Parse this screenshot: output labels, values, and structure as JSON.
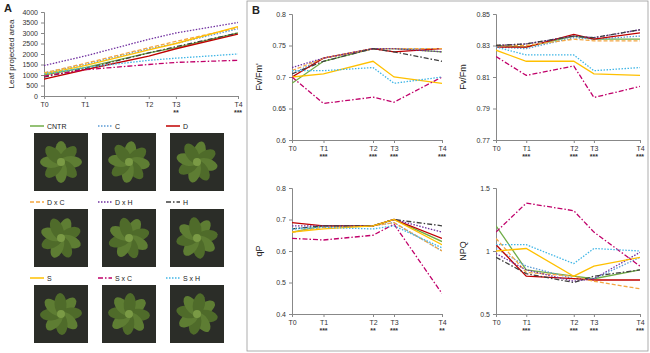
{
  "chart_data": [
    {
      "type": "line",
      "title": "A",
      "ylabel": "Leaf projected area",
      "categories": [
        "T0",
        "T1",
        "T2",
        "T3",
        "T4"
      ],
      "annotations": [
        null,
        null,
        null,
        "**",
        "***"
      ],
      "ylim": [
        0,
        4000
      ],
      "yticks": [
        0,
        500,
        1000,
        1500,
        2000,
        2500,
        3000,
        3500,
        4000
      ],
      "grid": false,
      "legend": "bottom",
      "series": [
        {
          "name": "CNTR",
          "color": "#70ad47",
          "line_style": "solid",
          "values": [
            1000,
            1350,
            2050,
            2300,
            3000
          ]
        },
        {
          "name": "C",
          "color": "#5b9bd5",
          "line_style": "dotted",
          "values": [
            1100,
            1500,
            2250,
            2500,
            3200
          ]
        },
        {
          "name": "D",
          "color": "#c00000",
          "line_style": "solid",
          "values": [
            800,
            1250,
            1900,
            2250,
            2950
          ]
        },
        {
          "name": "D x C",
          "color": "#f4a742",
          "line_style": "dashed",
          "values": [
            1100,
            1550,
            2300,
            2600,
            3250
          ]
        },
        {
          "name": "D x H",
          "color": "#7030a0",
          "line_style": "dotted",
          "values": [
            1450,
            1900,
            2700,
            3000,
            3500
          ]
        },
        {
          "name": "H",
          "color": "#404040",
          "line_style": "dashdot",
          "values": [
            900,
            1300,
            2050,
            2350,
            3000
          ]
        },
        {
          "name": "S",
          "color": "#ffc000",
          "line_style": "solid",
          "values": [
            1050,
            1450,
            2200,
            2500,
            3300
          ]
        },
        {
          "name": "S x C",
          "color": "#c0006a",
          "line_style": "dashdot",
          "values": [
            950,
            1250,
            1500,
            1600,
            1700
          ]
        },
        {
          "name": "S x H",
          "color": "#41b6e6",
          "line_style": "dotted",
          "values": [
            1050,
            1350,
            1700,
            1800,
            2000
          ]
        }
      ]
    },
    {
      "type": "line",
      "title": "B",
      "ylabel": "Fv/Fm'",
      "categories": [
        "T0",
        "T1",
        "T2",
        "T3",
        "T4"
      ],
      "annotations": [
        null,
        "***",
        "***",
        "***",
        "***"
      ],
      "ylim": [
        0.6,
        0.8
      ],
      "yticks": [
        0.6,
        0.65,
        0.7,
        0.75,
        0.8
      ],
      "grid": false,
      "series": [
        {
          "name": "CNTR",
          "color": "#70ad47",
          "line_style": "solid",
          "values": [
            0.69,
            0.725,
            0.745,
            0.745,
            0.74
          ]
        },
        {
          "name": "C",
          "color": "#5b9bd5",
          "line_style": "dotted",
          "values": [
            0.705,
            0.73,
            0.745,
            0.745,
            0.745
          ]
        },
        {
          "name": "D",
          "color": "#c00000",
          "line_style": "solid",
          "values": [
            0.7,
            0.73,
            0.745,
            0.74,
            0.745
          ]
        },
        {
          "name": "D x C",
          "color": "#f4a742",
          "line_style": "dashed",
          "values": [
            0.71,
            0.73,
            0.745,
            0.745,
            0.745
          ]
        },
        {
          "name": "D x H",
          "color": "#7030a0",
          "line_style": "dotted",
          "values": [
            0.715,
            0.73,
            0.745,
            0.745,
            0.74
          ]
        },
        {
          "name": "H",
          "color": "#404040",
          "line_style": "dashdot",
          "values": [
            0.705,
            0.725,
            0.745,
            0.74,
            0.725
          ]
        },
        {
          "name": "S",
          "color": "#ffc000",
          "line_style": "solid",
          "values": [
            0.7,
            0.705,
            0.725,
            0.7,
            0.69
          ]
        },
        {
          "name": "S x C",
          "color": "#c0006a",
          "line_style": "dashdot",
          "values": [
            0.7,
            0.658,
            0.668,
            0.66,
            0.7
          ]
        },
        {
          "name": "S x H",
          "color": "#41b6e6",
          "line_style": "dotted",
          "values": [
            0.71,
            0.71,
            0.715,
            0.69,
            0.7
          ]
        }
      ]
    },
    {
      "type": "line",
      "ylabel": "Fv/Fm",
      "categories": [
        "T0",
        "T1",
        "T2",
        "T3",
        "T4"
      ],
      "annotations": [
        null,
        "***",
        "***",
        "***",
        "***"
      ],
      "ylim": [
        0.77,
        0.85
      ],
      "yticks": [
        0.77,
        0.79,
        0.81,
        0.83,
        0.85
      ],
      "grid": false,
      "series": [
        {
          "name": "CNTR",
          "color": "#70ad47",
          "line_style": "solid",
          "values": [
            0.83,
            0.829,
            0.836,
            0.834,
            0.834
          ]
        },
        {
          "name": "C",
          "color": "#5b9bd5",
          "line_style": "dotted",
          "values": [
            0.829,
            0.828,
            0.835,
            0.834,
            0.836
          ]
        },
        {
          "name": "D",
          "color": "#c00000",
          "line_style": "solid",
          "values": [
            0.829,
            0.829,
            0.837,
            0.834,
            0.838
          ]
        },
        {
          "name": "D x C",
          "color": "#f4a742",
          "line_style": "dashed",
          "values": [
            0.83,
            0.83,
            0.834,
            0.833,
            0.833
          ]
        },
        {
          "name": "D x H",
          "color": "#7030a0",
          "line_style": "dotted",
          "values": [
            0.83,
            0.831,
            0.836,
            0.835,
            0.84
          ]
        },
        {
          "name": "H",
          "color": "#404040",
          "line_style": "dashdot",
          "values": [
            0.83,
            0.831,
            0.836,
            0.835,
            0.84
          ]
        },
        {
          "name": "S",
          "color": "#ffc000",
          "line_style": "solid",
          "values": [
            0.827,
            0.82,
            0.82,
            0.812,
            0.811
          ]
        },
        {
          "name": "S x C",
          "color": "#c0006a",
          "line_style": "dashdot",
          "values": [
            0.823,
            0.811,
            0.817,
            0.797,
            0.804
          ]
        },
        {
          "name": "S x H",
          "color": "#41b6e6",
          "line_style": "dotted",
          "values": [
            0.829,
            0.824,
            0.824,
            0.814,
            0.816
          ]
        }
      ]
    },
    {
      "type": "line",
      "ylabel": "qP",
      "categories": [
        "T0",
        "T1",
        "T2",
        "T3",
        "T4"
      ],
      "annotations": [
        null,
        "***",
        "**",
        "***",
        "**"
      ],
      "ylim": [
        0.4,
        0.8
      ],
      "yticks": [
        0.4,
        0.5,
        0.6,
        0.7,
        0.8
      ],
      "grid": false,
      "series": [
        {
          "name": "CNTR",
          "color": "#70ad47",
          "line_style": "solid",
          "values": [
            0.66,
            0.68,
            0.68,
            0.7,
            0.63
          ]
        },
        {
          "name": "C",
          "color": "#5b9bd5",
          "line_style": "dotted",
          "values": [
            0.67,
            0.68,
            0.68,
            0.69,
            0.6
          ]
        },
        {
          "name": "D",
          "color": "#c00000",
          "line_style": "solid",
          "values": [
            0.69,
            0.68,
            0.68,
            0.7,
            0.64
          ]
        },
        {
          "name": "D x C",
          "color": "#f4a742",
          "line_style": "dashed",
          "values": [
            0.66,
            0.675,
            0.68,
            0.69,
            0.6
          ]
        },
        {
          "name": "D x H",
          "color": "#7030a0",
          "line_style": "dotted",
          "values": [
            0.68,
            0.68,
            0.68,
            0.7,
            0.66
          ]
        },
        {
          "name": "H",
          "color": "#404040",
          "line_style": "dashdot",
          "values": [
            0.67,
            0.68,
            0.68,
            0.7,
            0.68
          ]
        },
        {
          "name": "S",
          "color": "#ffc000",
          "line_style": "solid",
          "values": [
            0.66,
            0.67,
            0.68,
            0.7,
            0.62
          ]
        },
        {
          "name": "S x C",
          "color": "#c0006a",
          "line_style": "dashdot",
          "values": [
            0.64,
            0.635,
            0.65,
            0.685,
            0.465
          ]
        },
        {
          "name": "S x H",
          "color": "#41b6e6",
          "line_style": "dotted",
          "values": [
            0.67,
            0.675,
            0.67,
            0.68,
            0.61
          ]
        }
      ]
    },
    {
      "type": "line",
      "ylabel": "NPQ",
      "categories": [
        "T0",
        "T1",
        "T2",
        "T3",
        "T4"
      ],
      "annotations": [
        null,
        "***",
        "***",
        "***",
        "***"
      ],
      "ylim": [
        0.5,
        1.5
      ],
      "yticks": [
        0.5,
        1,
        1.5
      ],
      "grid": false,
      "series": [
        {
          "name": "CNTR",
          "color": "#70ad47",
          "line_style": "solid",
          "values": [
            1.2,
            0.85,
            0.8,
            0.78,
            0.85
          ]
        },
        {
          "name": "C",
          "color": "#5b9bd5",
          "line_style": "dotted",
          "values": [
            1.02,
            0.88,
            0.78,
            0.78,
            0.95
          ]
        },
        {
          "name": "D",
          "color": "#c00000",
          "line_style": "solid",
          "values": [
            1.05,
            0.8,
            0.78,
            0.77,
            0.77
          ]
        },
        {
          "name": "D x C",
          "color": "#f4a742",
          "line_style": "dashed",
          "values": [
            1.1,
            0.83,
            0.8,
            0.76,
            0.7
          ]
        },
        {
          "name": "D x H",
          "color": "#7030a0",
          "line_style": "dotted",
          "values": [
            0.98,
            0.85,
            0.76,
            0.78,
            0.99
          ]
        },
        {
          "name": "H",
          "color": "#404040",
          "line_style": "dashdot",
          "values": [
            0.95,
            0.82,
            0.75,
            0.8,
            0.85
          ]
        },
        {
          "name": "S",
          "color": "#ffc000",
          "line_style": "solid",
          "values": [
            1.0,
            1.02,
            0.8,
            0.88,
            0.95
          ]
        },
        {
          "name": "S x C",
          "color": "#c0006a",
          "line_style": "dashdot",
          "values": [
            1.15,
            1.38,
            1.32,
            1.15,
            0.88
          ]
        },
        {
          "name": "S x H",
          "color": "#41b6e6",
          "line_style": "dotted",
          "values": [
            1.05,
            1.05,
            0.9,
            1.02,
            1.0
          ]
        }
      ]
    }
  ]
}
